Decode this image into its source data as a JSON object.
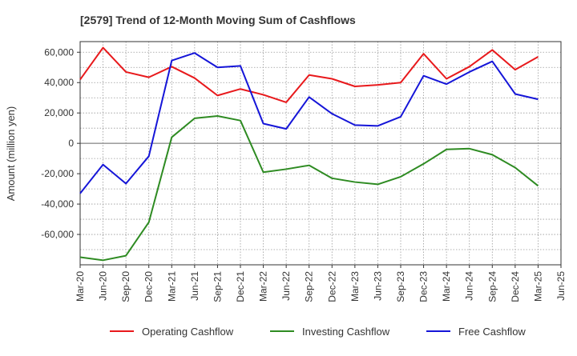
{
  "chart_data": {
    "type": "line",
    "title": "[2579]  Trend of 12-Month Moving Sum of Cashflows",
    "xlabel": "",
    "ylabel": "Amount (million yen)",
    "ylim": [
      -80000,
      67000
    ],
    "yticks": [
      60000,
      40000,
      20000,
      0,
      -20000,
      -40000,
      -60000
    ],
    "ytick_labels": [
      "60,000",
      "40,000",
      "20,000",
      "0",
      "-20,000",
      "-40,000",
      "-60,000"
    ],
    "x_tick_labels": [
      "Mar-20",
      "Jun-20",
      "Sep-20",
      "Dec-20",
      "Mar-21",
      "Jun-21",
      "Sep-21",
      "Dec-21",
      "Mar-22",
      "Jun-22",
      "Sep-22",
      "Dec-22",
      "Mar-23",
      "Jun-23",
      "Sep-23",
      "Dec-23",
      "Mar-24",
      "Jun-24",
      "Sep-24",
      "Dec-24",
      "Mar-25",
      "Jun-25"
    ],
    "categories": [
      "Mar-20",
      "Jun-20",
      "Sep-20",
      "Dec-20",
      "Mar-21",
      "Jun-21",
      "Sep-21",
      "Dec-21",
      "Mar-22",
      "Jun-22",
      "Sep-22",
      "Dec-22",
      "Mar-23",
      "Jun-23",
      "Sep-23",
      "Dec-23",
      "Mar-24",
      "Jun-24",
      "Sep-24",
      "Dec-24",
      "Mar-25"
    ],
    "grid": true,
    "legend_position": "bottom",
    "series": [
      {
        "name": "Operating Cashflow",
        "color": "#e8191c",
        "values": [
          42000,
          63000,
          47000,
          43500,
          50500,
          43000,
          31500,
          35800,
          32000,
          27000,
          45000,
          42500,
          37500,
          38500,
          40000,
          59000,
          42500,
          50500,
          61500,
          48500,
          57000
        ]
      },
      {
        "name": "Investing Cashflow",
        "color": "#2e8b22",
        "values": [
          -75000,
          -77000,
          -74000,
          -52000,
          4000,
          16500,
          18000,
          15000,
          -19000,
          -17000,
          -14500,
          -23000,
          -25500,
          -27000,
          -22000,
          -13500,
          -4000,
          -3500,
          -7500,
          -16000,
          -28000
        ]
      },
      {
        "name": "Free Cashflow",
        "color": "#1515d8",
        "values": [
          -33000,
          -14000,
          -26500,
          -8500,
          54500,
          59500,
          50000,
          51000,
          13000,
          9500,
          30500,
          19500,
          12000,
          11500,
          17500,
          44500,
          39000,
          47000,
          54000,
          32500,
          29000
        ]
      }
    ]
  }
}
